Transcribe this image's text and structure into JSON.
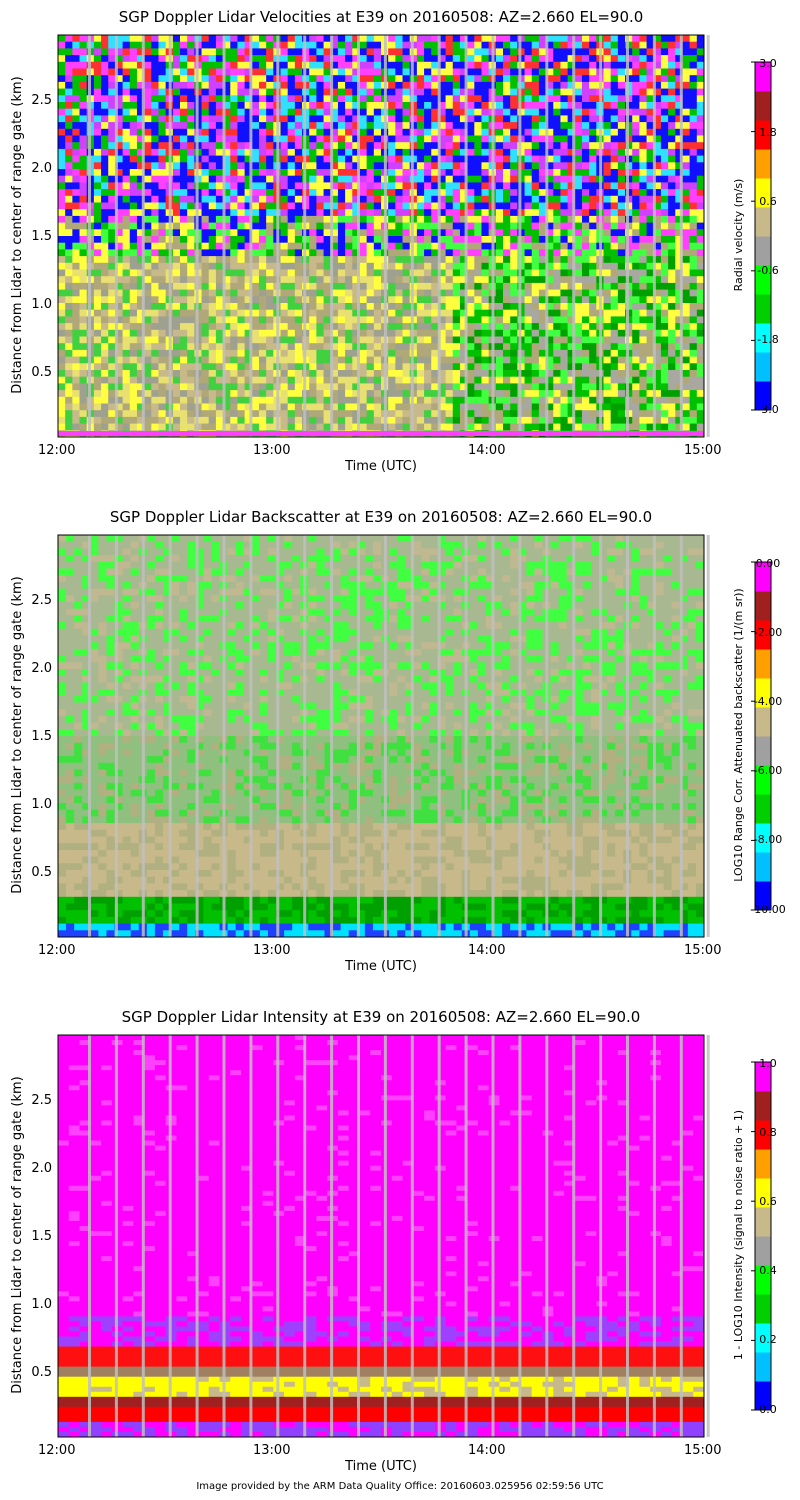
{
  "footer": "Image provided by the ARM Data Quality Office: 20160603.025956 02:59:56 UTC",
  "chart_data": [
    {
      "type": "heatmap",
      "title": "SGP Doppler Lidar Velocities at E39 on 20160508: AZ=2.660 EL=90.0",
      "xlabel": "Time (UTC)",
      "ylabel": "Distance from Lidar to center of range gate (km)",
      "x_ticks": [
        "12:00",
        "13:00",
        "14:00",
        "15:00"
      ],
      "y_ticks": [
        "0.5",
        "1.0",
        "1.5",
        "2.0",
        "2.5"
      ],
      "xlim": [
        "12:00",
        "15:00"
      ],
      "ylim": [
        0.0,
        3.0
      ],
      "colorbar": {
        "label": "Radial velocity (m/s)",
        "ticks": [
          "3.0",
          "1.8",
          "0.6",
          "-0.6",
          "-1.8",
          "-3.0"
        ],
        "range": [
          -3.0,
          3.0
        ]
      },
      "description_regions": [
        {
          "range_km": [
            0.1,
            1.6
          ],
          "dominant": "tan/yellow/green near-zero velocities"
        },
        {
          "range_km": [
            1.6,
            3.0
          ],
          "dominant": "noisy blue/magenta/red speckle"
        }
      ]
    },
    {
      "type": "heatmap",
      "title": "SGP Doppler Lidar Backscatter at E39 on 20160508: AZ=2.660 EL=90.0",
      "xlabel": "Time (UTC)",
      "ylabel": "Distance from Lidar to center of range gate (km)",
      "x_ticks": [
        "12:00",
        "13:00",
        "14:00",
        "15:00"
      ],
      "y_ticks": [
        "0.5",
        "1.0",
        "1.5",
        "2.0",
        "2.5"
      ],
      "xlim": [
        "12:00",
        "15:00"
      ],
      "ylim": [
        0.0,
        3.0
      ],
      "colorbar": {
        "label": "LOG10 Range Corr. Attenuated backscatter (1/(m sr))",
        "ticks": [
          "0.00",
          "-2.00",
          "-4.00",
          "-6.00",
          "-8.00",
          "-10.00"
        ],
        "range": [
          -10.0,
          0.0
        ]
      }
    },
    {
      "type": "heatmap",
      "title": "SGP Doppler Lidar Intensity at E39 on 20160508: AZ=2.660 EL=90.0",
      "xlabel": "Time (UTC)",
      "ylabel": "Distance from Lidar to center of range gate (km)",
      "x_ticks": [
        "12:00",
        "13:00",
        "14:00",
        "15:00"
      ],
      "y_ticks": [
        "0.5",
        "1.0",
        "1.5",
        "2.0",
        "2.5"
      ],
      "xlim": [
        "12:00",
        "15:00"
      ],
      "ylim": [
        0.0,
        3.0
      ],
      "colorbar": {
        "label": "1 - LOG10 Intensity (signal to noise ratio + 1)",
        "ticks": [
          "1.0",
          "0.8",
          "0.6",
          "0.4",
          "0.2",
          "0.0"
        ],
        "range": [
          0.0,
          1.0
        ]
      }
    }
  ]
}
